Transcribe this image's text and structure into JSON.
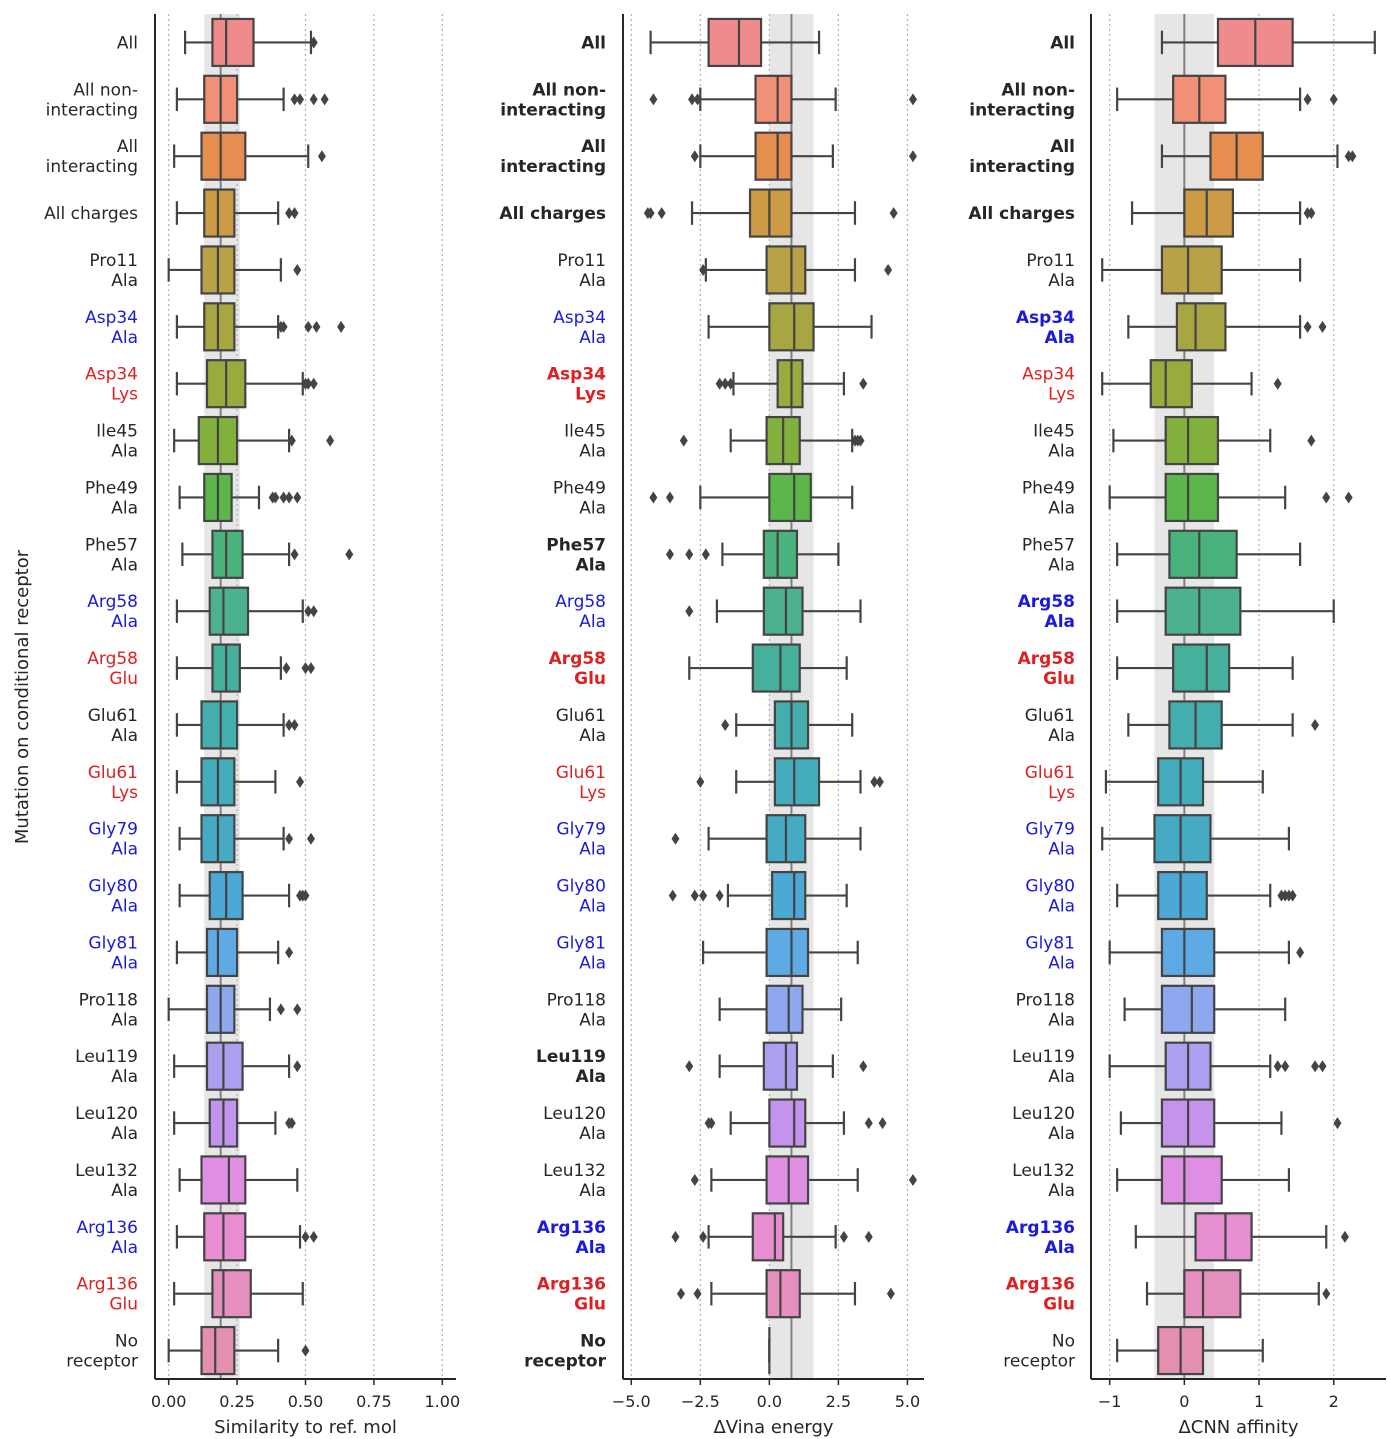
{
  "ylabel": "Mutation on conditional receptor",
  "colors": {
    "neutral": "#262626",
    "blue": "#1a1adc",
    "red": "#e02020",
    "box_edge": "#444444",
    "shade": "#e6e6e6",
    "ref_line": "#808080",
    "grid": "#b0b0b0"
  },
  "categories": [
    "All",
    "All non-\ninteracting",
    "All\ninteracting",
    "All charges",
    "Pro11\nAla",
    "Asp34\nAla",
    "Asp34\nLys",
    "Ile45\nAla",
    "Phe49\nAla",
    "Phe57\nAla",
    "Arg58\nAla",
    "Arg58\nGlu",
    "Glu61\nAla",
    "Glu61\nLys",
    "Gly79\nAla",
    "Gly80\nAla",
    "Gly81\nAla",
    "Pro118\nAla",
    "Leu119\nAla",
    "Leu120\nAla",
    "Leu132\nAla",
    "Arg136\nAla",
    "Arg136\nGlu",
    "No\nreceptor"
  ],
  "category_colors": [
    "neutral",
    "neutral",
    "neutral",
    "neutral",
    "neutral",
    "blue",
    "red",
    "neutral",
    "neutral",
    "neutral",
    "blue",
    "red",
    "neutral",
    "red",
    "blue",
    "blue",
    "blue",
    "neutral",
    "neutral",
    "neutral",
    "neutral",
    "blue",
    "red",
    "neutral"
  ],
  "box_fill": [
    "#f08b8d",
    "#ef9077",
    "#e58e4f",
    "#cd9a46",
    "#b9a146",
    "#a8a642",
    "#97ab3f",
    "#82b03d",
    "#5db64a",
    "#4ab37d",
    "#4bb18f",
    "#47b09c",
    "#44adad",
    "#44acba",
    "#47aac5",
    "#4ca8d4",
    "#5eaae5",
    "#8da8ee",
    "#ad9fef",
    "#c494ec",
    "#de8fe4",
    "#e78ed3",
    "#e48fbe",
    "#e48fb0"
  ],
  "chart_data": [
    {
      "type": "box",
      "xlabel": "Similarity to ref. mol",
      "xlim": [
        -0.05,
        1.05
      ],
      "xticks": [
        0.0,
        0.25,
        0.5,
        0.75,
        1.0
      ],
      "xticklabels": [
        "0.00",
        "0.25",
        "0.50",
        "0.75",
        "1.00"
      ],
      "ref_line": 0.19,
      "shaded_band": [
        0.13,
        0.26
      ],
      "bold": [
        false,
        false,
        false,
        false,
        false,
        false,
        false,
        false,
        false,
        false,
        false,
        false,
        false,
        false,
        false,
        false,
        false,
        false,
        false,
        false,
        false,
        false,
        false,
        false
      ],
      "boxes": [
        {
          "q1": 0.16,
          "median": 0.21,
          "q3": 0.31,
          "wlo": 0.06,
          "whi": 0.52,
          "outliers": [
            0.53
          ]
        },
        {
          "q1": 0.13,
          "median": 0.19,
          "q3": 0.25,
          "wlo": 0.03,
          "whi": 0.42,
          "outliers": [
            0.46,
            0.48,
            0.53,
            0.57
          ]
        },
        {
          "q1": 0.12,
          "median": 0.19,
          "q3": 0.28,
          "wlo": 0.02,
          "whi": 0.51,
          "outliers": [
            0.56
          ]
        },
        {
          "q1": 0.13,
          "median": 0.18,
          "q3": 0.24,
          "wlo": 0.03,
          "whi": 0.4,
          "outliers": [
            0.44,
            0.46
          ]
        },
        {
          "q1": 0.12,
          "median": 0.18,
          "q3": 0.24,
          "wlo": 0.0,
          "whi": 0.41,
          "outliers": [
            0.47
          ]
        },
        {
          "q1": 0.13,
          "median": 0.18,
          "q3": 0.24,
          "wlo": 0.03,
          "whi": 0.4,
          "outliers": [
            0.41,
            0.42,
            0.51,
            0.54,
            0.63
          ]
        },
        {
          "q1": 0.14,
          "median": 0.21,
          "q3": 0.28,
          "wlo": 0.03,
          "whi": 0.49,
          "outliers": [
            0.5,
            0.51,
            0.53
          ]
        },
        {
          "q1": 0.11,
          "median": 0.18,
          "q3": 0.25,
          "wlo": 0.02,
          "whi": 0.44,
          "outliers": [
            0.45,
            0.59
          ]
        },
        {
          "q1": 0.13,
          "median": 0.18,
          "q3": 0.23,
          "wlo": 0.04,
          "whi": 0.33,
          "outliers": [
            0.38,
            0.39,
            0.42,
            0.44,
            0.47
          ]
        },
        {
          "q1": 0.16,
          "median": 0.21,
          "q3": 0.27,
          "wlo": 0.05,
          "whi": 0.44,
          "outliers": [
            0.46,
            0.66
          ]
        },
        {
          "q1": 0.15,
          "median": 0.2,
          "q3": 0.29,
          "wlo": 0.03,
          "whi": 0.49,
          "outliers": [
            0.51,
            0.53
          ]
        },
        {
          "q1": 0.16,
          "median": 0.21,
          "q3": 0.26,
          "wlo": 0.03,
          "whi": 0.41,
          "outliers": [
            0.43,
            0.5,
            0.52
          ]
        },
        {
          "q1": 0.12,
          "median": 0.19,
          "q3": 0.25,
          "wlo": 0.03,
          "whi": 0.42,
          "outliers": [
            0.44,
            0.46
          ]
        },
        {
          "q1": 0.12,
          "median": 0.18,
          "q3": 0.24,
          "wlo": 0.03,
          "whi": 0.39,
          "outliers": [
            0.48
          ]
        },
        {
          "q1": 0.12,
          "median": 0.18,
          "q3": 0.24,
          "wlo": 0.04,
          "whi": 0.42,
          "outliers": [
            0.44,
            0.52
          ]
        },
        {
          "q1": 0.15,
          "median": 0.21,
          "q3": 0.27,
          "wlo": 0.04,
          "whi": 0.44,
          "outliers": [
            0.48,
            0.49,
            0.5
          ]
        },
        {
          "q1": 0.14,
          "median": 0.18,
          "q3": 0.25,
          "wlo": 0.03,
          "whi": 0.4,
          "outliers": [
            0.44
          ]
        },
        {
          "q1": 0.14,
          "median": 0.19,
          "q3": 0.24,
          "wlo": 0.0,
          "whi": 0.37,
          "outliers": [
            0.41,
            0.47
          ]
        },
        {
          "q1": 0.14,
          "median": 0.2,
          "q3": 0.27,
          "wlo": 0.02,
          "whi": 0.44,
          "outliers": [
            0.47
          ]
        },
        {
          "q1": 0.15,
          "median": 0.2,
          "q3": 0.25,
          "wlo": 0.02,
          "whi": 0.39,
          "outliers": [
            0.44,
            0.45
          ]
        },
        {
          "q1": 0.12,
          "median": 0.22,
          "q3": 0.28,
          "wlo": 0.04,
          "whi": 0.47,
          "outliers": []
        },
        {
          "q1": 0.13,
          "median": 0.2,
          "q3": 0.28,
          "wlo": 0.03,
          "whi": 0.48,
          "outliers": [
            0.5,
            0.53
          ]
        },
        {
          "q1": 0.16,
          "median": 0.2,
          "q3": 0.3,
          "wlo": 0.02,
          "whi": 0.49,
          "outliers": []
        },
        {
          "q1": 0.12,
          "median": 0.17,
          "q3": 0.24,
          "wlo": 0.0,
          "whi": 0.4,
          "outliers": [
            0.5
          ]
        }
      ]
    },
    {
      "type": "box",
      "xlabel": "ΔVina energy",
      "xlim": [
        -5.3,
        5.6
      ],
      "xticks": [
        -5.0,
        -2.5,
        0.0,
        2.5,
        5.0
      ],
      "xticklabels": [
        "−5.0",
        "−2.5",
        "0.0",
        "2.5",
        "5.0"
      ],
      "ref_line": 0.8,
      "shaded_band": [
        0.0,
        1.6
      ],
      "bold": [
        true,
        true,
        true,
        true,
        false,
        false,
        true,
        false,
        false,
        true,
        false,
        true,
        false,
        false,
        false,
        false,
        false,
        false,
        true,
        false,
        false,
        true,
        true,
        true
      ],
      "boxes": [
        {
          "q1": -2.2,
          "median": -1.1,
          "q3": -0.3,
          "wlo": -4.3,
          "whi": 1.8,
          "outliers": []
        },
        {
          "q1": -0.5,
          "median": 0.3,
          "q3": 0.8,
          "wlo": -2.5,
          "whi": 2.4,
          "outliers": [
            -4.2,
            -2.8,
            -2.6,
            5.2
          ]
        },
        {
          "q1": -0.5,
          "median": 0.3,
          "q3": 0.8,
          "wlo": -2.5,
          "whi": 2.3,
          "outliers": [
            -2.7,
            5.2
          ]
        },
        {
          "q1": -0.7,
          "median": 0.0,
          "q3": 0.8,
          "wlo": -2.8,
          "whi": 3.1,
          "outliers": [
            -4.4,
            -4.3,
            -3.9,
            4.5
          ]
        },
        {
          "q1": -0.1,
          "median": 0.8,
          "q3": 1.3,
          "wlo": -2.3,
          "whi": 3.1,
          "outliers": [
            -2.4,
            4.3
          ]
        },
        {
          "q1": 0.0,
          "median": 0.9,
          "q3": 1.6,
          "wlo": -2.2,
          "whi": 3.7,
          "outliers": []
        },
        {
          "q1": 0.3,
          "median": 0.8,
          "q3": 1.2,
          "wlo": -1.3,
          "whi": 2.7,
          "outliers": [
            -1.8,
            -1.6,
            -1.4,
            3.4
          ]
        },
        {
          "q1": -0.1,
          "median": 0.5,
          "q3": 1.1,
          "wlo": -1.4,
          "whi": 3.0,
          "outliers": [
            -3.1,
            3.1,
            3.2,
            3.3
          ]
        },
        {
          "q1": 0.0,
          "median": 0.9,
          "q3": 1.5,
          "wlo": -2.5,
          "whi": 3.0,
          "outliers": [
            -4.2,
            -3.6
          ]
        },
        {
          "q1": -0.2,
          "median": 0.3,
          "q3": 1.0,
          "wlo": -1.7,
          "whi": 2.5,
          "outliers": [
            -3.6,
            -2.9,
            -2.3
          ]
        },
        {
          "q1": -0.2,
          "median": 0.6,
          "q3": 1.2,
          "wlo": -1.9,
          "whi": 3.3,
          "outliers": [
            -2.9
          ]
        },
        {
          "q1": -0.6,
          "median": 0.4,
          "q3": 1.1,
          "wlo": -2.9,
          "whi": 2.8,
          "outliers": []
        },
        {
          "q1": 0.2,
          "median": 0.8,
          "q3": 1.4,
          "wlo": -1.2,
          "whi": 3.0,
          "outliers": [
            -1.6
          ]
        },
        {
          "q1": 0.2,
          "median": 0.9,
          "q3": 1.8,
          "wlo": -1.2,
          "whi": 3.3,
          "outliers": [
            -2.5,
            3.8,
            4.0
          ]
        },
        {
          "q1": -0.1,
          "median": 0.6,
          "q3": 1.3,
          "wlo": -2.2,
          "whi": 3.3,
          "outliers": [
            -3.4
          ]
        },
        {
          "q1": 0.1,
          "median": 0.9,
          "q3": 1.3,
          "wlo": -1.5,
          "whi": 2.8,
          "outliers": [
            -3.5,
            -2.7,
            -2.4,
            -1.8
          ]
        },
        {
          "q1": -0.1,
          "median": 0.8,
          "q3": 1.4,
          "wlo": -2.4,
          "whi": 3.2,
          "outliers": []
        },
        {
          "q1": -0.1,
          "median": 0.7,
          "q3": 1.2,
          "wlo": -1.8,
          "whi": 2.6,
          "outliers": []
        },
        {
          "q1": -0.2,
          "median": 0.6,
          "q3": 1.0,
          "wlo": -1.8,
          "whi": 2.3,
          "outliers": [
            -2.9,
            3.4
          ]
        },
        {
          "q1": 0.0,
          "median": 0.9,
          "q3": 1.3,
          "wlo": -1.4,
          "whi": 2.7,
          "outliers": [
            -2.2,
            -2.1,
            3.6,
            4.1
          ]
        },
        {
          "q1": -0.1,
          "median": 0.7,
          "q3": 1.4,
          "wlo": -2.1,
          "whi": 3.2,
          "outliers": [
            -2.7,
            5.2
          ]
        },
        {
          "q1": -0.6,
          "median": 0.2,
          "q3": 0.5,
          "wlo": -2.2,
          "whi": 2.4,
          "outliers": [
            -3.4,
            -2.4,
            2.7,
            3.6
          ]
        },
        {
          "q1": -0.1,
          "median": 0.4,
          "q3": 1.1,
          "wlo": -2.1,
          "whi": 3.1,
          "outliers": [
            -3.2,
            -2.6,
            4.4
          ]
        },
        {
          "q1": 0.0,
          "median": 0.0,
          "q3": 0.0,
          "wlo": 0.0,
          "whi": 0.0,
          "outliers": []
        }
      ]
    },
    {
      "type": "box",
      "xlabel": "ΔCNN affinity",
      "xlim": [
        -1.25,
        2.7
      ],
      "xticks": [
        -1,
        0,
        1,
        2
      ],
      "xticklabels": [
        "−1",
        "0",
        "1",
        "2"
      ],
      "ref_line": 0.0,
      "shaded_band": [
        -0.4,
        0.4
      ],
      "bold": [
        true,
        true,
        true,
        true,
        false,
        true,
        false,
        false,
        false,
        false,
        true,
        true,
        false,
        false,
        false,
        false,
        false,
        false,
        false,
        false,
        false,
        true,
        true,
        false
      ],
      "boxes": [
        {
          "q1": 0.45,
          "median": 0.95,
          "q3": 1.45,
          "wlo": -0.3,
          "whi": 2.55,
          "outliers": []
        },
        {
          "q1": -0.15,
          "median": 0.2,
          "q3": 0.55,
          "wlo": -0.9,
          "whi": 1.55,
          "outliers": [
            1.65,
            2.0
          ]
        },
        {
          "q1": 0.35,
          "median": 0.7,
          "q3": 1.05,
          "wlo": -0.3,
          "whi": 2.05,
          "outliers": [
            2.2,
            2.25
          ]
        },
        {
          "q1": 0.0,
          "median": 0.3,
          "q3": 0.65,
          "wlo": -0.7,
          "whi": 1.55,
          "outliers": [
            1.65,
            1.7
          ]
        },
        {
          "q1": -0.3,
          "median": 0.05,
          "q3": 0.5,
          "wlo": -1.1,
          "whi": 1.55,
          "outliers": []
        },
        {
          "q1": -0.1,
          "median": 0.15,
          "q3": 0.55,
          "wlo": -0.75,
          "whi": 1.55,
          "outliers": [
            1.65,
            1.85
          ]
        },
        {
          "q1": -0.45,
          "median": -0.25,
          "q3": 0.1,
          "wlo": -1.1,
          "whi": 0.9,
          "outliers": [
            1.25
          ]
        },
        {
          "q1": -0.25,
          "median": 0.05,
          "q3": 0.45,
          "wlo": -0.95,
          "whi": 1.15,
          "outliers": [
            1.7
          ]
        },
        {
          "q1": -0.25,
          "median": 0.05,
          "q3": 0.45,
          "wlo": -1.0,
          "whi": 1.35,
          "outliers": [
            1.9,
            2.2
          ]
        },
        {
          "q1": -0.2,
          "median": 0.2,
          "q3": 0.7,
          "wlo": -0.9,
          "whi": 1.55,
          "outliers": []
        },
        {
          "q1": -0.25,
          "median": 0.2,
          "q3": 0.75,
          "wlo": -0.9,
          "whi": 2.0,
          "outliers": []
        },
        {
          "q1": -0.15,
          "median": 0.3,
          "q3": 0.6,
          "wlo": -0.9,
          "whi": 1.45,
          "outliers": []
        },
        {
          "q1": -0.2,
          "median": 0.15,
          "q3": 0.5,
          "wlo": -0.75,
          "whi": 1.45,
          "outliers": [
            1.75
          ]
        },
        {
          "q1": -0.35,
          "median": -0.05,
          "q3": 0.25,
          "wlo": -1.05,
          "whi": 1.05,
          "outliers": []
        },
        {
          "q1": -0.4,
          "median": -0.05,
          "q3": 0.35,
          "wlo": -1.1,
          "whi": 1.4,
          "outliers": []
        },
        {
          "q1": -0.35,
          "median": -0.05,
          "q3": 0.3,
          "wlo": -0.9,
          "whi": 1.15,
          "outliers": [
            1.3,
            1.35,
            1.4,
            1.45
          ]
        },
        {
          "q1": -0.3,
          "median": 0.0,
          "q3": 0.4,
          "wlo": -1.0,
          "whi": 1.4,
          "outliers": [
            1.55
          ]
        },
        {
          "q1": -0.3,
          "median": 0.1,
          "q3": 0.4,
          "wlo": -0.8,
          "whi": 1.35,
          "outliers": []
        },
        {
          "q1": -0.25,
          "median": 0.05,
          "q3": 0.35,
          "wlo": -1.0,
          "whi": 1.15,
          "outliers": [
            1.25,
            1.35,
            1.75,
            1.85
          ]
        },
        {
          "q1": -0.3,
          "median": 0.05,
          "q3": 0.4,
          "wlo": -0.85,
          "whi": 1.3,
          "outliers": [
            2.05
          ]
        },
        {
          "q1": -0.3,
          "median": 0.0,
          "q3": 0.5,
          "wlo": -0.9,
          "whi": 1.4,
          "outliers": []
        },
        {
          "q1": 0.15,
          "median": 0.55,
          "q3": 0.9,
          "wlo": -0.65,
          "whi": 1.9,
          "outliers": [
            2.15
          ]
        },
        {
          "q1": 0.0,
          "median": 0.25,
          "q3": 0.75,
          "wlo": -0.5,
          "whi": 1.8,
          "outliers": [
            1.9
          ]
        },
        {
          "q1": -0.35,
          "median": -0.05,
          "q3": 0.25,
          "wlo": -0.9,
          "whi": 1.05,
          "outliers": []
        }
      ]
    }
  ]
}
